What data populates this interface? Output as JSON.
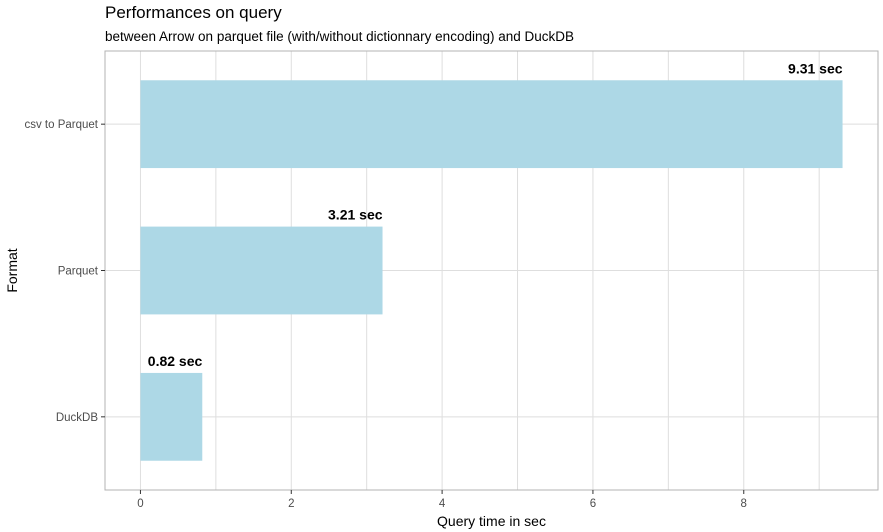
{
  "chart_data": {
    "type": "bar",
    "orientation": "horizontal",
    "title": "Performances on query",
    "subtitle": "between Arrow on parquet file (with/without dictionnary encoding) and DuckDB",
    "xlabel": "Query time in sec",
    "ylabel": "Format",
    "categories": [
      "csv to Parquet",
      "Parquet",
      "DuckDB"
    ],
    "values": [
      9.31,
      3.21,
      0.82
    ],
    "data_labels": [
      "9.31 sec",
      "3.21 sec",
      "0.82 sec"
    ],
    "x_ticks": [
      0,
      2,
      4,
      6,
      8
    ],
    "xlim": [
      -0.47,
      9.78
    ],
    "grid": true,
    "colors": {
      "bar": "#add8e6",
      "grid": "#dedede",
      "panel_border": "#b3b3b3"
    }
  }
}
